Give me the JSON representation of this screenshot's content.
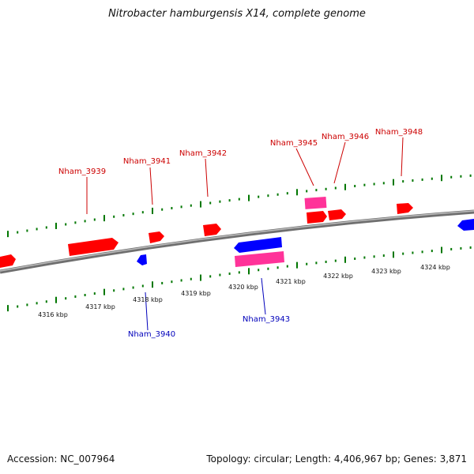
{
  "title": "Nitrobacter hamburgensis X14, complete genome",
  "accession": "Accession: NC_007964",
  "summary": "Topology: circular; Length: 4,406,967 bp; Genes: 3,871",
  "colors": {
    "forward_gene": "#ff0000",
    "reverse_gene": "#0000ff",
    "rna_gene": "#ff3399",
    "forward_label": "#cc0000",
    "reverse_label": "#0000bb",
    "tick": "#007700",
    "backbone": "#888888"
  },
  "scale_labels": [
    "4316 kbp",
    "4317 kbp",
    "4318 kbp",
    "4319 kbp",
    "4320 kbp",
    "4321 kbp",
    "4322 kbp",
    "4323 kbp",
    "4324 kbp"
  ],
  "gene_labels": [
    {
      "text": "Nham_3939",
      "strand": "forward"
    },
    {
      "text": "Nham_3941",
      "strand": "forward"
    },
    {
      "text": "Nham_3942",
      "strand": "forward"
    },
    {
      "text": "Nham_3945",
      "strand": "forward"
    },
    {
      "text": "Nham_3946",
      "strand": "forward"
    },
    {
      "text": "Nham_3948",
      "strand": "forward"
    },
    {
      "text": "Nham_3940",
      "strand": "reverse"
    },
    {
      "text": "Nham_3943",
      "strand": "reverse"
    }
  ]
}
